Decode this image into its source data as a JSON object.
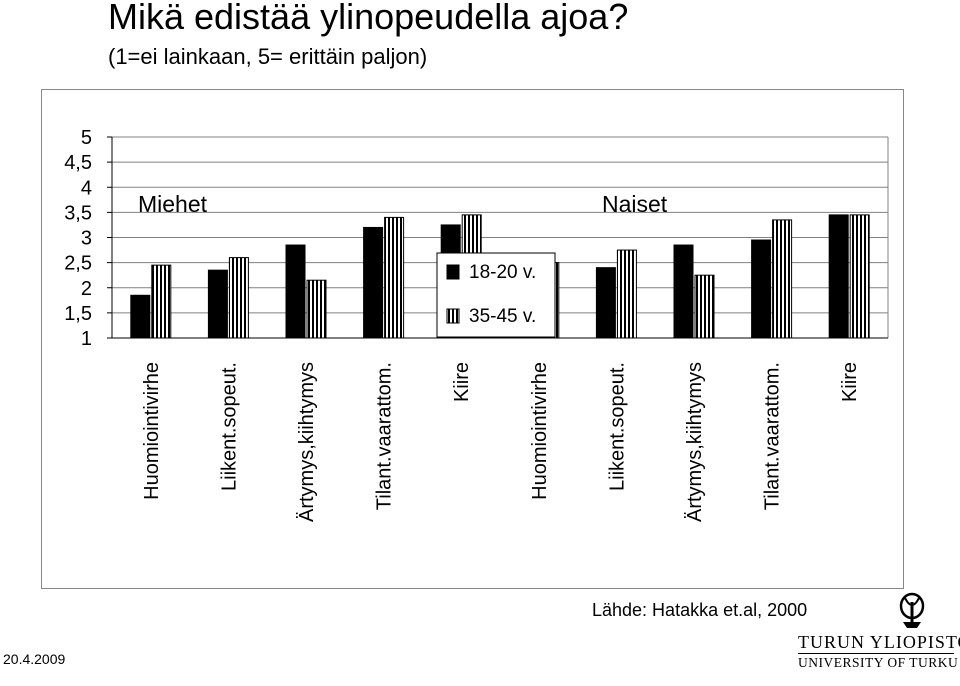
{
  "slide": {
    "title": "Mikä edistää ylinopeudella ajoa?",
    "subtitle": "(1=ei lainkaan, 5= erittäin paljon)",
    "source": "Lähde: Hatakka et.al, 2000",
    "date": "20.4.2009",
    "logo_line1": "TURUN YLIOPISTO",
    "logo_line2": "UNIVERSITY OF TURKU"
  },
  "chart_data": {
    "type": "bar",
    "ylim": [
      1,
      5
    ],
    "yticks": [
      "5",
      "4,5",
      "4",
      "3,5",
      "3",
      "2,5",
      "2",
      "1,5",
      "1"
    ],
    "grid": true,
    "legend_position": "center",
    "series": [
      {
        "name": "18-20 v.",
        "color": "#000000",
        "pattern": "solid"
      },
      {
        "name": "35-45 v.",
        "color": "#ffffff",
        "pattern": "vertical-stripes"
      }
    ],
    "groups": [
      {
        "label": "Miehet",
        "categories": [
          "Huomiointivirhe",
          "Liikent.sopeut.",
          "Ärtymys,kiihtymys",
          "Tilant.vaarattom.",
          "Kiire"
        ],
        "values": [
          [
            1.85,
            2.45
          ],
          [
            2.35,
            2.6
          ],
          [
            2.85,
            2.15
          ],
          [
            3.2,
            3.4
          ],
          [
            3.25,
            3.45
          ]
        ]
      },
      {
        "label": "Naiset",
        "categories": [
          "Huomiointivirhe",
          "Liikent.sopeut.",
          "Ärtymys,kiihtymys",
          "Tilant.vaarattom.",
          "Kiire"
        ],
        "values": [
          [
            2.15,
            2.5
          ],
          [
            2.4,
            2.75
          ],
          [
            2.85,
            2.25
          ],
          [
            2.95,
            3.35
          ],
          [
            3.45,
            3.45
          ]
        ]
      }
    ]
  }
}
